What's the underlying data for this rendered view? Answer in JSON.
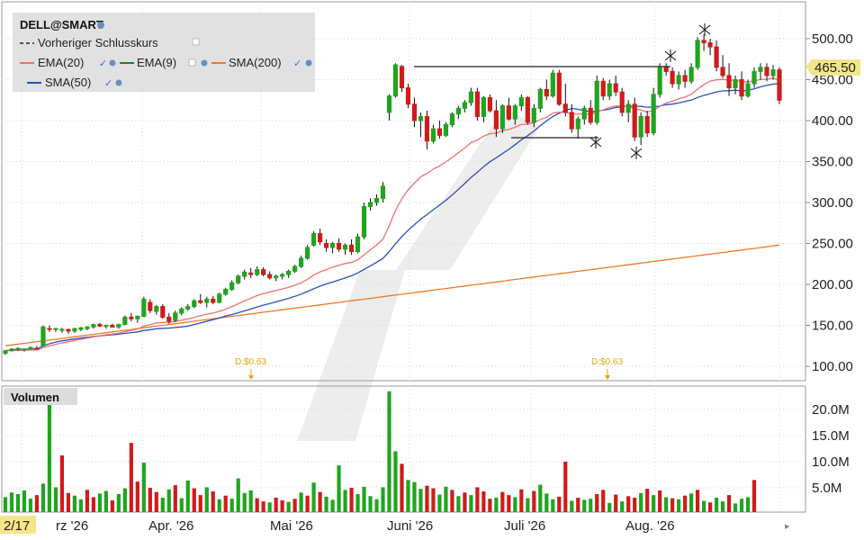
{
  "legend": {
    "symbol": "DELL@SMART",
    "prev_close_label": "Vorheriger Schlusskurs",
    "ema20_label": "EMA(20)",
    "ema9_label": "EMA(9)",
    "sma200_label": "SMA(200)",
    "sma50_label": "SMA(50)"
  },
  "colors": {
    "up": "#1fa51f",
    "down": "#d01b1b",
    "ema20": "#f07070",
    "ema9": "#2a7a2a",
    "sma200": "#f07a22",
    "sma50": "#2b4fbf",
    "volume_up": "#1fa51f",
    "volume_down": "#d01b1b",
    "dividend": "#e0a800",
    "price_tag": "#f3e68a"
  },
  "price_tag": "465.50",
  "dividend_labels": [
    "D:$0.63",
    "D:$0.63"
  ],
  "volume_panel_title": "Volumen",
  "cursor_date": "2/17",
  "chart_data": {
    "type": "candlestick",
    "x_labels": [
      "rz '26",
      "Apr. '26",
      "Mai '26",
      "Juni '26",
      "Juli '26",
      "Aug. '26"
    ],
    "price_axis": {
      "ticks": [
        "500.00",
        "450.00",
        "400.00",
        "350.00",
        "300.00",
        "250.00",
        "200.00",
        "150.00",
        "100.00"
      ],
      "ylim": [
        80,
        520
      ]
    },
    "volume_axis": {
      "ticks": [
        "20.0M",
        "15.0M",
        "10.0M",
        "5.0M"
      ],
      "ylim": [
        0,
        25
      ]
    },
    "ohlc": [
      [
        116,
        120,
        114,
        119
      ],
      [
        119,
        122,
        118,
        121
      ],
      [
        121,
        123,
        119,
        122
      ],
      [
        120,
        122,
        118,
        121
      ],
      [
        121,
        124,
        120,
        123
      ],
      [
        122,
        125,
        120,
        121
      ],
      [
        125,
        150,
        124,
        148
      ],
      [
        146,
        150,
        142,
        145
      ],
      [
        145,
        147,
        142,
        146
      ],
      [
        144,
        147,
        141,
        145
      ],
      [
        145,
        146,
        140,
        143
      ],
      [
        143,
        147,
        141,
        146
      ],
      [
        145,
        148,
        143,
        147
      ],
      [
        146,
        149,
        144,
        148
      ],
      [
        148,
        152,
        146,
        151
      ],
      [
        151,
        153,
        148,
        149
      ],
      [
        149,
        151,
        146,
        150
      ],
      [
        150,
        152,
        147,
        148
      ],
      [
        148,
        152,
        146,
        151
      ],
      [
        151,
        162,
        150,
        160
      ],
      [
        160,
        165,
        155,
        158
      ],
      [
        158,
        162,
        153,
        161
      ],
      [
        161,
        185,
        160,
        182
      ],
      [
        178,
        182,
        165,
        168
      ],
      [
        167,
        175,
        163,
        173
      ],
      [
        173,
        176,
        158,
        160
      ],
      [
        160,
        165,
        152,
        155
      ],
      [
        156,
        168,
        154,
        165
      ],
      [
        165,
        172,
        162,
        170
      ],
      [
        170,
        176,
        168,
        173
      ],
      [
        173,
        182,
        171,
        180
      ],
      [
        180,
        188,
        176,
        178
      ],
      [
        178,
        185,
        172,
        182
      ],
      [
        182,
        186,
        176,
        178
      ],
      [
        178,
        190,
        177,
        188
      ],
      [
        188,
        196,
        186,
        194
      ],
      [
        194,
        205,
        192,
        202
      ],
      [
        202,
        212,
        200,
        210
      ],
      [
        210,
        218,
        206,
        215
      ],
      [
        214,
        220,
        208,
        212
      ],
      [
        212,
        222,
        210,
        218
      ],
      [
        218,
        221,
        210,
        212
      ],
      [
        212,
        216,
        206,
        208
      ],
      [
        208,
        212,
        204,
        210
      ],
      [
        210,
        214,
        206,
        212
      ],
      [
        212,
        218,
        208,
        216
      ],
      [
        216,
        224,
        214,
        222
      ],
      [
        222,
        235,
        220,
        232
      ],
      [
        232,
        248,
        230,
        245
      ],
      [
        248,
        265,
        246,
        262
      ],
      [
        262,
        268,
        248,
        252
      ],
      [
        250,
        255,
        240,
        245
      ],
      [
        245,
        252,
        238,
        250
      ],
      [
        250,
        256,
        240,
        243
      ],
      [
        243,
        250,
        236,
        248
      ],
      [
        248,
        255,
        236,
        240
      ],
      [
        240,
        262,
        238,
        258
      ],
      [
        258,
        300,
        255,
        295
      ],
      [
        295,
        305,
        290,
        300
      ],
      [
        300,
        310,
        296,
        305
      ],
      [
        305,
        325,
        300,
        320
      ],
      [
        410,
        432,
        400,
        430
      ],
      [
        430,
        470,
        428,
        468
      ],
      [
        466,
        468,
        435,
        440
      ],
      [
        440,
        445,
        415,
        420
      ],
      [
        420,
        428,
        392,
        400
      ],
      [
        400,
        410,
        380,
        405
      ],
      [
        405,
        412,
        365,
        375
      ],
      [
        375,
        395,
        372,
        390
      ],
      [
        390,
        400,
        378,
        382
      ],
      [
        382,
        398,
        380,
        395
      ],
      [
        395,
        410,
        392,
        408
      ],
      [
        408,
        418,
        402,
        415
      ],
      [
        415,
        425,
        410,
        422
      ],
      [
        422,
        440,
        418,
        435
      ],
      [
        435,
        440,
        400,
        405
      ],
      [
        405,
        430,
        398,
        428
      ],
      [
        428,
        432,
        410,
        412
      ],
      [
        412,
        425,
        380,
        390
      ],
      [
        390,
        420,
        385,
        418
      ],
      [
        418,
        428,
        400,
        402
      ],
      [
        402,
        420,
        395,
        418
      ],
      [
        418,
        432,
        412,
        428
      ],
      [
        428,
        430,
        395,
        398
      ],
      [
        398,
        420,
        392,
        415
      ],
      [
        415,
        440,
        410,
        438
      ],
      [
        438,
        450,
        425,
        430
      ],
      [
        430,
        462,
        428,
        458
      ],
      [
        458,
        462,
        418,
        420
      ],
      [
        420,
        445,
        405,
        410
      ],
      [
        410,
        420,
        385,
        390
      ],
      [
        390,
        405,
        378,
        402
      ],
      [
        402,
        418,
        395,
        415
      ],
      [
        415,
        425,
        395,
        398
      ],
      [
        398,
        455,
        395,
        448
      ],
      [
        448,
        452,
        425,
        430
      ],
      [
        430,
        450,
        425,
        445
      ],
      [
        445,
        455,
        430,
        435
      ],
      [
        435,
        440,
        405,
        410
      ],
      [
        410,
        425,
        398,
        420
      ],
      [
        420,
        428,
        375,
        380
      ],
      [
        380,
        410,
        370,
        405
      ],
      [
        405,
        412,
        380,
        385
      ],
      [
        385,
        440,
        382,
        432
      ],
      [
        432,
        470,
        428,
        465
      ],
      [
        465,
        470,
        455,
        460
      ],
      [
        460,
        465,
        440,
        445
      ],
      [
        445,
        460,
        438,
        455
      ],
      [
        455,
        462,
        440,
        448
      ],
      [
        448,
        470,
        445,
        465
      ],
      [
        465,
        502,
        462,
        498
      ],
      [
        498,
        505,
        485,
        495
      ],
      [
        495,
        500,
        480,
        490
      ],
      [
        490,
        498,
        460,
        465
      ],
      [
        465,
        480,
        452,
        455
      ],
      [
        455,
        470,
        430,
        440
      ],
      [
        440,
        455,
        432,
        450
      ],
      [
        450,
        460,
        425,
        430
      ],
      [
        430,
        450,
        428,
        445
      ],
      [
        445,
        465,
        440,
        460
      ],
      [
        460,
        470,
        450,
        465
      ],
      [
        465,
        470,
        448,
        455
      ],
      [
        455,
        468,
        450,
        462
      ],
      [
        462,
        465,
        420,
        425
      ]
    ],
    "volume": [
      [
        3.2,
        1
      ],
      [
        4.1,
        1
      ],
      [
        3.8,
        1
      ],
      [
        4.5,
        1
      ],
      [
        2.9,
        1
      ],
      [
        3.6,
        0
      ],
      [
        5.8,
        1
      ],
      [
        22.5,
        1
      ],
      [
        5.1,
        1
      ],
      [
        11.2,
        0
      ],
      [
        4.0,
        0
      ],
      [
        3.5,
        1
      ],
      [
        2.8,
        1
      ],
      [
        4.6,
        0
      ],
      [
        3.2,
        0
      ],
      [
        3.9,
        1
      ],
      [
        4.4,
        1
      ],
      [
        2.6,
        0
      ],
      [
        3.8,
        1
      ],
      [
        4.9,
        1
      ],
      [
        13.6,
        0
      ],
      [
        6.2,
        0
      ],
      [
        9.8,
        1
      ],
      [
        5.0,
        0
      ],
      [
        4.2,
        0
      ],
      [
        3.1,
        1
      ],
      [
        4.7,
        1
      ],
      [
        5.5,
        0
      ],
      [
        3.0,
        1
      ],
      [
        6.4,
        1
      ],
      [
        4.9,
        0
      ],
      [
        3.6,
        0
      ],
      [
        5.1,
        1
      ],
      [
        4.3,
        0
      ],
      [
        2.8,
        1
      ],
      [
        3.5,
        0
      ],
      [
        2.9,
        1
      ],
      [
        6.8,
        1
      ],
      [
        4.0,
        1
      ],
      [
        4.5,
        1
      ],
      [
        3.0,
        0
      ],
      [
        2.4,
        0
      ],
      [
        2.2,
        1
      ],
      [
        3.1,
        0
      ],
      [
        2.6,
        0
      ],
      [
        2.3,
        1
      ],
      [
        2.9,
        0
      ],
      [
        4.1,
        1
      ],
      [
        3.5,
        0
      ],
      [
        6.0,
        1
      ],
      [
        4.2,
        0
      ],
      [
        3.3,
        1
      ],
      [
        2.7,
        1
      ],
      [
        9.3,
        1
      ],
      [
        4.6,
        1
      ],
      [
        5.0,
        0
      ],
      [
        3.8,
        1
      ],
      [
        5.2,
        1
      ],
      [
        3.4,
        1
      ],
      [
        2.8,
        1
      ],
      [
        5.1,
        1
      ],
      [
        23.5,
        1
      ],
      [
        12.0,
        1
      ],
      [
        9.6,
        0
      ],
      [
        6.5,
        1
      ],
      [
        6.1,
        1
      ],
      [
        4.8,
        1
      ],
      [
        5.4,
        0
      ],
      [
        4.9,
        0
      ],
      [
        3.7,
        1
      ],
      [
        5.2,
        1
      ],
      [
        4.6,
        0
      ],
      [
        3.4,
        1
      ],
      [
        4.1,
        0
      ],
      [
        3.6,
        1
      ],
      [
        5.1,
        0
      ],
      [
        4.3,
        0
      ],
      [
        2.9,
        0
      ],
      [
        3.1,
        1
      ],
      [
        4.2,
        0
      ],
      [
        3.6,
        0
      ],
      [
        3.2,
        1
      ],
      [
        4.7,
        0
      ],
      [
        3.0,
        1
      ],
      [
        4.4,
        0
      ],
      [
        5.6,
        1
      ],
      [
        3.9,
        1
      ],
      [
        2.8,
        1
      ],
      [
        3.3,
        0
      ],
      [
        10.0,
        0
      ],
      [
        2.5,
        1
      ],
      [
        3.1,
        0
      ],
      [
        2.7,
        1
      ],
      [
        2.9,
        1
      ],
      [
        3.8,
        0
      ],
      [
        4.6,
        0
      ],
      [
        2.1,
        1
      ],
      [
        3.7,
        0
      ],
      [
        2.4,
        1
      ],
      [
        3.4,
        0
      ],
      [
        3.1,
        0
      ],
      [
        4.0,
        1
      ],
      [
        4.8,
        0
      ],
      [
        3.6,
        1
      ],
      [
        4.5,
        0
      ],
      [
        3.2,
        1
      ],
      [
        3.0,
        0
      ],
      [
        2.8,
        1
      ],
      [
        3.5,
        0
      ],
      [
        3.9,
        1
      ],
      [
        4.6,
        0
      ],
      [
        2.5,
        1
      ],
      [
        2.2,
        0
      ],
      [
        3.1,
        1
      ],
      [
        2.4,
        1
      ],
      [
        3.6,
        0
      ],
      [
        2.0,
        1
      ],
      [
        2.9,
        1
      ],
      [
        3.2,
        1
      ],
      [
        6.5,
        0
      ]
    ]
  }
}
